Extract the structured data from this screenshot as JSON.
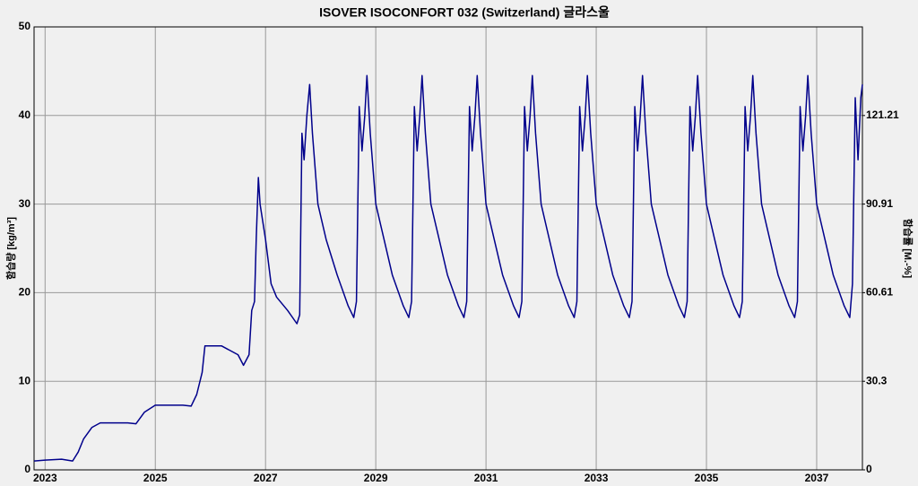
{
  "chart_data": {
    "type": "line",
    "title": "ISOVER ISOCONFORT 032 (Switzerland) 글라스울",
    "y_label": "함습량 [kg/m³]",
    "y2_label": "함습률 [M.-%]",
    "xlim": [
      2022.8,
      2037.83
    ],
    "xticks": [
      2023,
      2025,
      2027,
      2029,
      2031,
      2033,
      2035,
      2037
    ],
    "ylim": [
      0,
      50
    ],
    "yticks": [
      0,
      10,
      20,
      30,
      40,
      50
    ],
    "y2lim": [
      0,
      151.52
    ],
    "y2ticks": [
      0,
      30.3,
      60.61,
      90.91,
      121.21
    ],
    "grid": true,
    "series": [
      {
        "color": "#00008b",
        "x": [
          2022.8,
          2023.0,
          2023.3,
          2023.5,
          2023.6,
          2023.7,
          2023.85,
          2024.0,
          2024.5,
          2024.65,
          2024.8,
          2025.0,
          2025.5,
          2025.65,
          2025.75,
          2025.85,
          2025.9,
          2026.2,
          2026.5,
          2026.6,
          2026.7,
          2026.75,
          2026.8,
          2026.83,
          2026.87,
          2026.9,
          2027.0,
          2027.1,
          2027.2,
          2027.4,
          2027.57,
          2027.62,
          2027.66,
          2027.7,
          2027.75,
          2027.8,
          2027.85,
          2027.95,
          2028.1,
          2028.3,
          2028.5,
          2028.6,
          2028.65,
          2028.7,
          2028.75,
          2028.8,
          2028.84,
          2028.9,
          2029.0,
          2029.15,
          2029.3,
          2029.5,
          2029.6,
          2029.65,
          2029.7,
          2029.75,
          2029.8,
          2029.84,
          2029.9,
          2030.0,
          2030.15,
          2030.3,
          2030.5,
          2030.6,
          2030.65,
          2030.7,
          2030.75,
          2030.8,
          2030.84,
          2030.9,
          2031.0,
          2031.15,
          2031.3,
          2031.5,
          2031.6,
          2031.65,
          2031.7,
          2031.75,
          2031.8,
          2031.84,
          2031.9,
          2032.0,
          2032.15,
          2032.3,
          2032.5,
          2032.6,
          2032.65,
          2032.7,
          2032.75,
          2032.8,
          2032.84,
          2032.9,
          2033.0,
          2033.15,
          2033.3,
          2033.5,
          2033.6,
          2033.65,
          2033.7,
          2033.75,
          2033.8,
          2033.84,
          2033.9,
          2034.0,
          2034.15,
          2034.3,
          2034.5,
          2034.6,
          2034.65,
          2034.7,
          2034.75,
          2034.8,
          2034.84,
          2034.9,
          2035.0,
          2035.15,
          2035.3,
          2035.5,
          2035.6,
          2035.65,
          2035.7,
          2035.75,
          2035.8,
          2035.84,
          2035.9,
          2036.0,
          2036.15,
          2036.3,
          2036.5,
          2036.6,
          2036.65,
          2036.7,
          2036.75,
          2036.8,
          2036.84,
          2036.9,
          2037.0,
          2037.15,
          2037.3,
          2037.5,
          2037.6,
          2037.65,
          2037.7,
          2037.75,
          2037.8,
          2037.83
        ],
        "values": [
          1.0,
          1.1,
          1.2,
          1.0,
          2.0,
          3.5,
          4.8,
          5.3,
          5.3,
          5.2,
          6.5,
          7.3,
          7.3,
          7.2,
          8.5,
          11,
          14,
          14,
          13,
          11.8,
          13,
          18,
          19,
          26,
          33,
          30,
          26,
          21,
          19.5,
          18,
          16.5,
          17.5,
          38,
          35,
          40,
          43.5,
          38,
          30,
          26,
          22,
          18.5,
          17.2,
          19,
          41,
          36,
          40,
          44.5,
          38,
          30,
          26,
          22,
          18.5,
          17.2,
          19,
          41,
          36,
          40,
          44.5,
          38,
          30,
          26,
          22,
          18.5,
          17.2,
          19,
          41,
          36,
          40,
          44.5,
          38,
          30,
          26,
          22,
          18.5,
          17.2,
          19,
          41,
          36,
          40,
          44.5,
          38,
          30,
          26,
          22,
          18.5,
          17.2,
          19,
          41,
          36,
          40,
          44.5,
          38,
          30,
          26,
          22,
          18.5,
          17.2,
          19,
          41,
          36,
          40,
          44.5,
          38,
          30,
          26,
          22,
          18.5,
          17.2,
          19,
          41,
          36,
          40,
          44.5,
          38,
          30,
          26,
          22,
          18.5,
          17.2,
          19,
          41,
          36,
          40,
          44.5,
          38,
          30,
          26,
          22,
          18.5,
          17.2,
          19,
          41,
          36,
          40,
          44.5,
          38,
          30,
          26,
          22,
          18.5,
          17.2,
          21,
          42,
          35,
          42,
          43.5
        ]
      }
    ]
  }
}
